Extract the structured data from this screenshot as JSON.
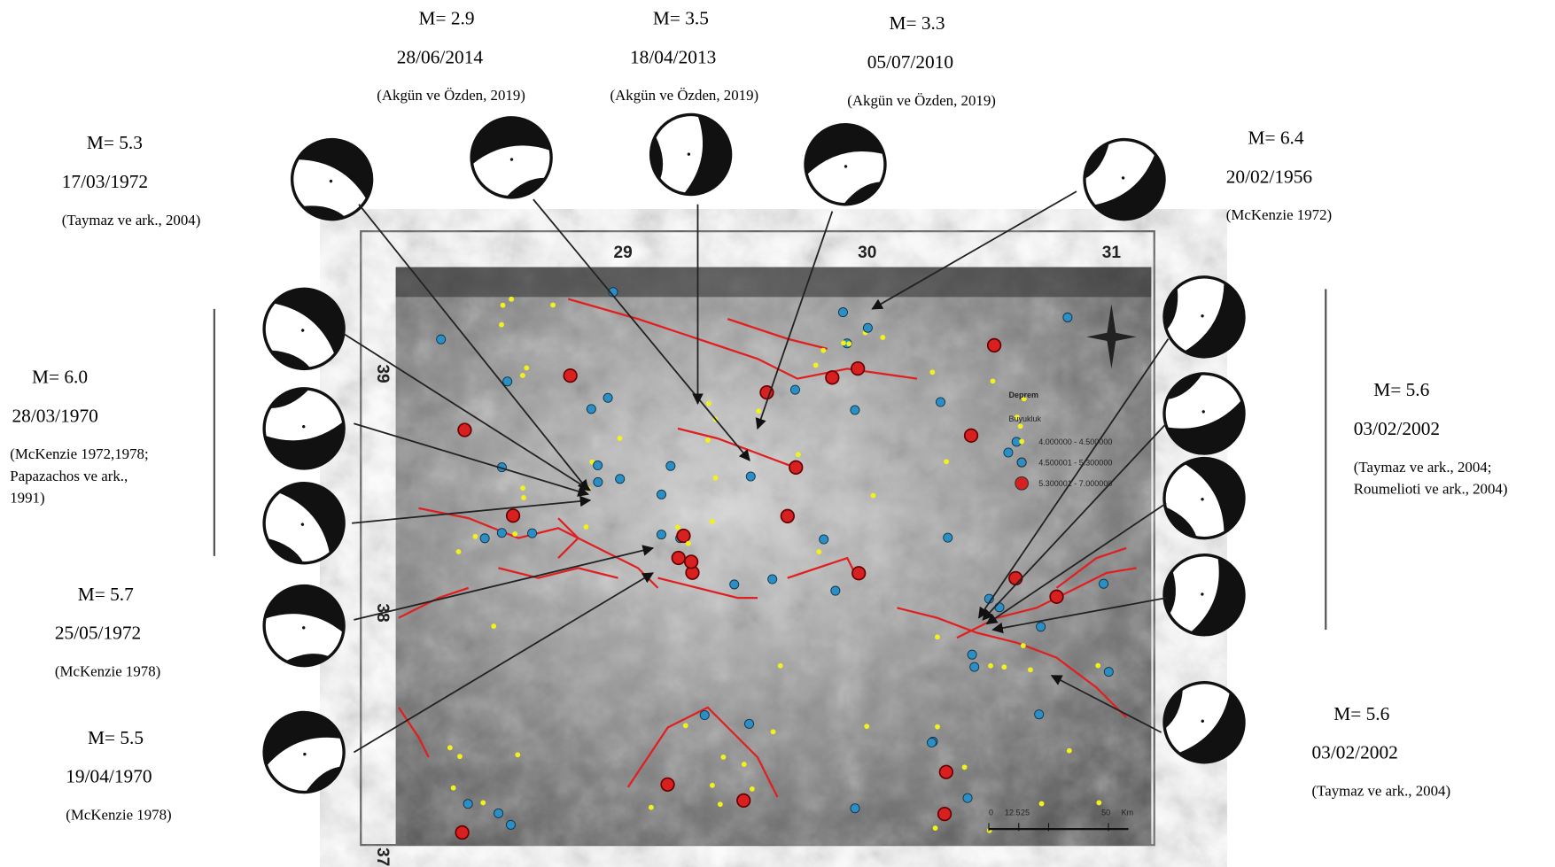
{
  "annotations": [
    {
      "magnitude": "M= 5.3",
      "date": "17/03/1972",
      "source": [
        "(Taymaz ve ark., 2004)"
      ]
    },
    {
      "magnitude": "M= 2.9",
      "date": "28/06/2014",
      "source": [
        "(Akgün ve Özden, 2019)"
      ]
    },
    {
      "magnitude": "M= 3.5",
      "date": "18/04/2013",
      "source": [
        "(Akgün ve Özden, 2019)"
      ]
    },
    {
      "magnitude": "M= 3.3",
      "date": "05/07/2010",
      "source": [
        "(Akgün ve Özden, 2019)"
      ]
    },
    {
      "magnitude": "M= 6.4",
      "date": "20/02/1956",
      "source": [
        "(McKenzie 1972)"
      ]
    },
    {
      "magnitude": "M= 6.0",
      "date": "28/03/1970",
      "source": [
        "(McKenzie 1972,1978;",
        "Papazachos ve ark.,",
        "1991)"
      ]
    },
    {
      "magnitude": "M= 5.7",
      "date": "25/05/1972",
      "source": [
        "(McKenzie 1978)"
      ]
    },
    {
      "magnitude": "M= 5.5",
      "date": "19/04/1970",
      "source": [
        "(McKenzie 1978)"
      ]
    },
    {
      "magnitude": "M= 5.6",
      "date": "03/02/2002",
      "source": [
        "(Taymaz ve ark., 2004;",
        "Roumelioti ve ark., 2004)"
      ]
    },
    {
      "magnitude": "M= 5.6",
      "date": "03/02/2002",
      "source": [
        "(Taymaz ve ark., 2004)"
      ]
    }
  ],
  "map": {
    "longitude_labels": [
      "29",
      "30",
      "31"
    ],
    "latitude_labels": [
      "39",
      "38",
      "37"
    ],
    "legend": {
      "title": "Deprem",
      "subtitle": "Buyukluk",
      "classes": [
        "4.000000 - 4.500000",
        "4.500001 - 5.300000",
        "5.300001 - 7.000000"
      ]
    },
    "scale_bar": [
      "0",
      "12.5",
      "25",
      "50",
      "Km"
    ]
  }
}
